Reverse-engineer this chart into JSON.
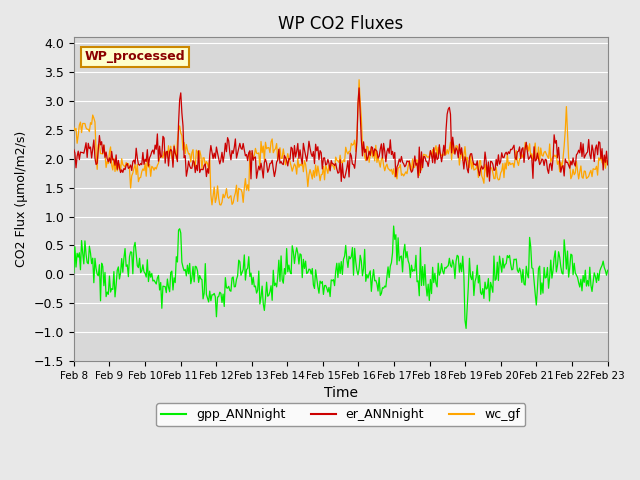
{
  "title": "WP CO2 Fluxes",
  "xlabel": "Time",
  "ylabel": "CO2 Flux (μmol/m2/s)",
  "ylim": [
    -1.5,
    4.1
  ],
  "background_color": "#e8e8e8",
  "plot_bg_color": "#d8d8d8",
  "grid_color": "white",
  "er_color": "#cc0000",
  "gpp_color": "#00ee00",
  "wc_color": "#ffa500",
  "legend_label": "WP_processed",
  "legend_text_color": "#8b0000",
  "legend_bg": "#ffffcc",
  "legend_border": "#cc8800",
  "x_tick_labels": [
    "Feb 8",
    "Feb 9",
    "Feb 10",
    "Feb 11",
    "Feb 12",
    "Feb 13",
    "Feb 14",
    "Feb 15",
    "Feb 16",
    "Feb 17",
    "Feb 18",
    "Feb 19",
    "Feb 20",
    "Feb 21",
    "Feb 22",
    "Feb 23"
  ],
  "n_points": 480,
  "days": 15
}
